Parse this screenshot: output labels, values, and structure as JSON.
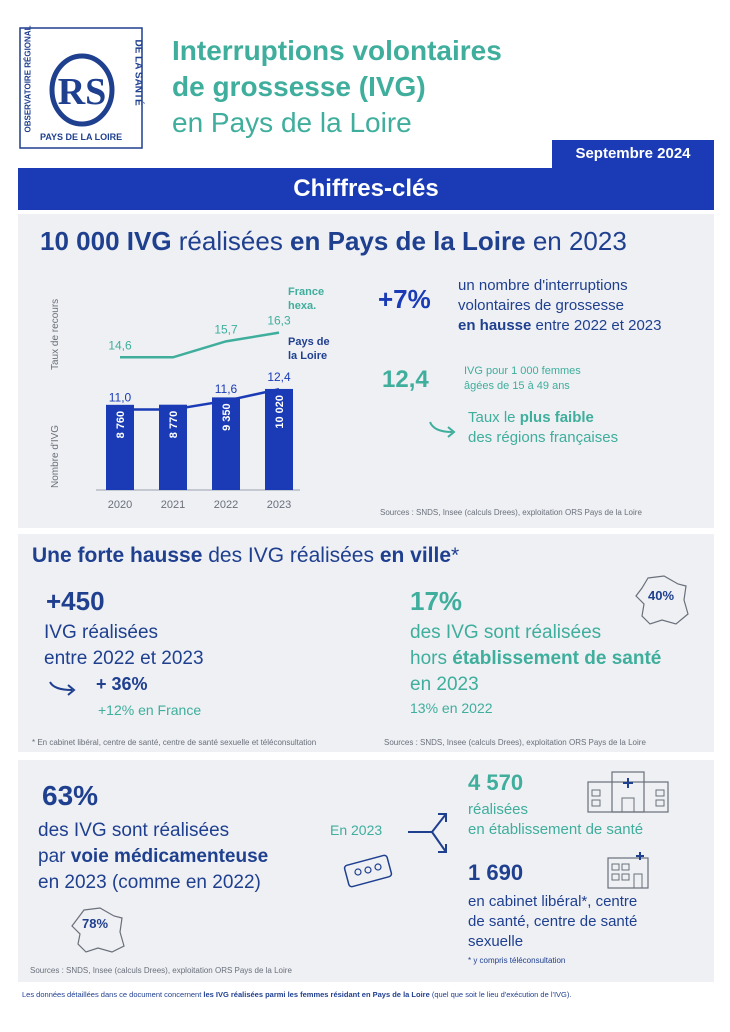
{
  "logo": {
    "top_text": "OBSERVATOIRE RÉGIONAL",
    "right_text": "DE LA SANTÉ",
    "monogram": "RS",
    "bottom_text": "PAYS DE LA LOIRE"
  },
  "header": {
    "title_1": "Interruptions volontaires",
    "title_2": "de grossesse (IVG)",
    "title_3": "en Pays de la Loire",
    "date": "Septembre 2024",
    "banner": "Chiffres-clés"
  },
  "section1": {
    "headline_1": "10 000 IVG",
    "headline_2": " réalisées ",
    "headline_3": "en Pays de la Loire",
    "headline_4": " en 2023",
    "y_label_rate": "Taux de recours",
    "y_label_count": "Nombre d'IVG",
    "series_france_label_1": "France",
    "series_france_label_2": "hexa.",
    "series_pdl_label_1": "Pays de",
    "series_pdl_label_2": "la Loire",
    "stat1_value": "+7%",
    "stat1_text_1": "un nombre d'interruptions",
    "stat1_text_2": "volontaires de grossesse",
    "stat1_text_3a": "en hausse",
    "stat1_text_3b": " entre 2022 et 2023",
    "stat2_value": "12,4",
    "stat2_text_1": "IVG pour 1 000 femmes",
    "stat2_text_2": "âgées de 15 à 49 ans",
    "stat2_arrow_text_1a": "Taux le ",
    "stat2_arrow_text_1b": "plus faible",
    "stat2_arrow_text_2": "des régions françaises",
    "source": "Sources : SNDS, Insee (calculs Drees), exploitation ORS Pays de la Loire"
  },
  "chart_data": {
    "type": "bar",
    "categories": [
      "2020",
      "2021",
      "2022",
      "2023"
    ],
    "values": [
      8760,
      8770,
      9350,
      10020
    ],
    "value_labels": [
      "8 760",
      "8 770",
      "9 350",
      "10 020"
    ],
    "ylabel": "Nombre d'IVG",
    "lines": [
      {
        "name": "France hexa.",
        "values": [
          14.6,
          null,
          15.7,
          16.3
        ],
        "labels": [
          "14,6",
          "",
          "15,7",
          "16,3"
        ],
        "color": "#3fae9c"
      },
      {
        "name": "Pays de la Loire",
        "values": [
          11.0,
          null,
          11.6,
          12.4
        ],
        "labels": [
          "11,0",
          "",
          "11,6",
          "12,4"
        ],
        "color": "#1a3bb5"
      }
    ],
    "line_ylabel": "Taux de recours"
  },
  "section2": {
    "title_a": "Une forte hausse",
    "title_b": " des IVG réalisées ",
    "title_c": "en ville",
    "title_d": "*",
    "left_value": "+450",
    "left_text_1": "IVG réalisées",
    "left_text_2": "entre 2022 et 2023",
    "left_change": "+ 36%",
    "left_france": "+12% en France",
    "right_value": "17%",
    "right_text_1": "des IVG sont réalisées",
    "right_text_2a": "hors ",
    "right_text_2b": "établissement de santé",
    "right_text_3": "en 2023",
    "right_prev": "13% en 2022",
    "map_value": "40%",
    "footnote": "* En cabinet libéral, centre de santé, centre de santé sexuelle et téléconsultation",
    "source": "Sources : SNDS, Insee (calculs Drees), exploitation ORS Pays de la Loire"
  },
  "section3": {
    "value": "63%",
    "text_1": "des IVG sont réalisées",
    "text_2a": "par ",
    "text_2b": "voie médicamenteuse",
    "text_3": "en 2023 (comme en 2022)",
    "map_value": "78%",
    "in_year": "En 2023",
    "hosp_value": "4 570",
    "hosp_text_1": "réalisées",
    "hosp_text_2": "en établissement de santé",
    "city_value": "1 690",
    "city_text_1": "en cabinet libéral*, centre",
    "city_text_2": "de santé, centre de santé",
    "city_text_3": "sexuelle",
    "city_note": "* y compris téléconsultation",
    "source": "Sources : SNDS, Insee (calculs Drees), exploitation ORS Pays de la Loire"
  },
  "footer": {
    "text_a": "Les données détaillées dans ce document concernent ",
    "text_b": "les IVG réalisées parmi les femmes résidant en Pays de la Loire",
    "text_c": " (quel que soit le lieu d'exécution de l'IVG)."
  },
  "colors": {
    "navy": "#1f3f8f",
    "blue": "#1a3bb5",
    "teal": "#3fae9c",
    "panel": "#eef0f4"
  }
}
